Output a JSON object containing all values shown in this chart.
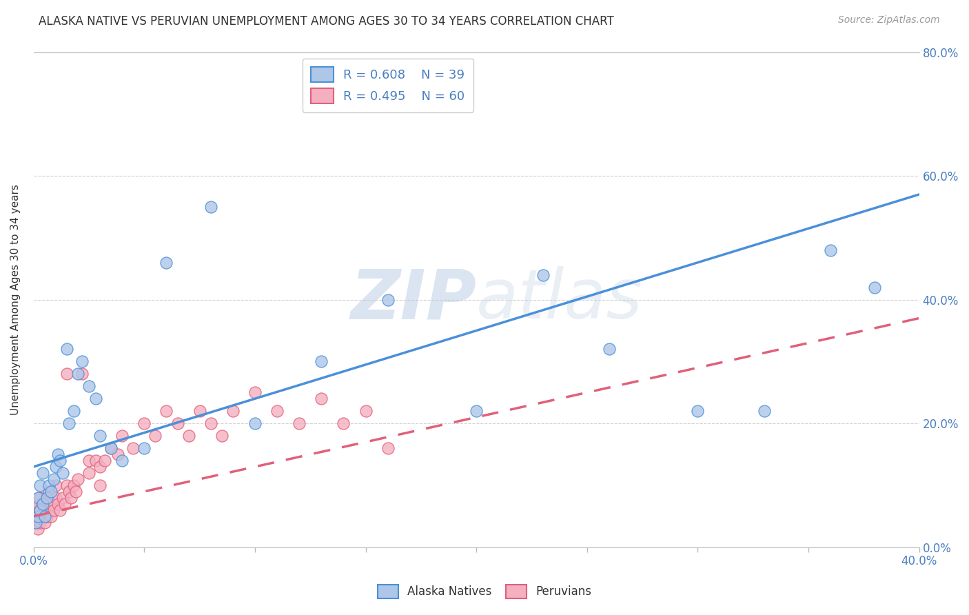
{
  "title": "ALASKA NATIVE VS PERUVIAN UNEMPLOYMENT AMONG AGES 30 TO 34 YEARS CORRELATION CHART",
  "source": "Source: ZipAtlas.com",
  "ylabel": "Unemployment Among Ages 30 to 34 years",
  "xlim": [
    0,
    0.4
  ],
  "ylim": [
    0,
    0.8
  ],
  "legend_R_alaska": "R = 0.608",
  "legend_N_alaska": "N = 39",
  "legend_R_peru": "R = 0.495",
  "legend_N_peru": "N = 60",
  "alaska_color": "#aec6e8",
  "peru_color": "#f4afc0",
  "alaska_line_color": "#4a90d9",
  "peru_line_color": "#e0607a",
  "alaska_x": [
    0.001,
    0.002,
    0.002,
    0.003,
    0.003,
    0.004,
    0.004,
    0.005,
    0.006,
    0.007,
    0.008,
    0.009,
    0.01,
    0.011,
    0.012,
    0.013,
    0.015,
    0.016,
    0.018,
    0.02,
    0.022,
    0.025,
    0.028,
    0.03,
    0.035,
    0.04,
    0.05,
    0.06,
    0.08,
    0.1,
    0.13,
    0.16,
    0.2,
    0.23,
    0.26,
    0.3,
    0.33,
    0.36,
    0.38
  ],
  "alaska_y": [
    0.04,
    0.05,
    0.08,
    0.06,
    0.1,
    0.07,
    0.12,
    0.05,
    0.08,
    0.1,
    0.09,
    0.11,
    0.13,
    0.15,
    0.14,
    0.12,
    0.32,
    0.2,
    0.22,
    0.28,
    0.3,
    0.26,
    0.24,
    0.18,
    0.16,
    0.14,
    0.16,
    0.46,
    0.55,
    0.2,
    0.3,
    0.4,
    0.22,
    0.44,
    0.32,
    0.22,
    0.22,
    0.48,
    0.42
  ],
  "peru_x": [
    0.001,
    0.001,
    0.001,
    0.002,
    0.002,
    0.002,
    0.003,
    0.003,
    0.003,
    0.004,
    0.004,
    0.005,
    0.005,
    0.006,
    0.006,
    0.007,
    0.007,
    0.008,
    0.008,
    0.009,
    0.01,
    0.01,
    0.011,
    0.012,
    0.013,
    0.014,
    0.015,
    0.015,
    0.016,
    0.017,
    0.018,
    0.019,
    0.02,
    0.022,
    0.025,
    0.025,
    0.028,
    0.03,
    0.03,
    0.032,
    0.035,
    0.038,
    0.04,
    0.045,
    0.05,
    0.055,
    0.06,
    0.065,
    0.07,
    0.075,
    0.08,
    0.085,
    0.09,
    0.1,
    0.11,
    0.12,
    0.13,
    0.14,
    0.15,
    0.16
  ],
  "peru_y": [
    0.04,
    0.05,
    0.06,
    0.03,
    0.05,
    0.07,
    0.04,
    0.06,
    0.08,
    0.05,
    0.07,
    0.04,
    0.06,
    0.05,
    0.08,
    0.06,
    0.09,
    0.05,
    0.07,
    0.06,
    0.08,
    0.1,
    0.07,
    0.06,
    0.08,
    0.07,
    0.28,
    0.1,
    0.09,
    0.08,
    0.1,
    0.09,
    0.11,
    0.28,
    0.14,
    0.12,
    0.14,
    0.1,
    0.13,
    0.14,
    0.16,
    0.15,
    0.18,
    0.16,
    0.2,
    0.18,
    0.22,
    0.2,
    0.18,
    0.22,
    0.2,
    0.18,
    0.22,
    0.25,
    0.22,
    0.2,
    0.24,
    0.2,
    0.22,
    0.16
  ],
  "alaska_trendline_x": [
    0.0,
    0.4
  ],
  "alaska_trendline_y": [
    0.13,
    0.57
  ],
  "peru_trendline_x": [
    0.0,
    0.4
  ],
  "peru_trendline_y": [
    0.05,
    0.37
  ]
}
